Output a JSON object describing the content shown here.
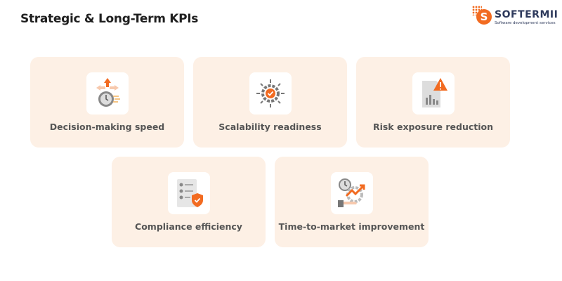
{
  "header": {
    "title": "Strategic & Long-Term KPIs"
  },
  "logo": {
    "name": "SOFTERMII",
    "tagline": "Software development services",
    "letter": "S"
  },
  "colors": {
    "accent": "#f26b21",
    "card_bg": "#fdf0e5",
    "text": "#555555"
  },
  "cards": [
    {
      "label": "Decision-making speed",
      "icon": "stopwatch-arrows-icon"
    },
    {
      "label": "Scalability readiness",
      "icon": "gear-check-icon"
    },
    {
      "label": "Risk exposure reduction",
      "icon": "document-warning-icon"
    },
    {
      "label": "Compliance efficiency",
      "icon": "checklist-shield-icon"
    },
    {
      "label": "Time-to-market improvement",
      "icon": "clock-growth-icon"
    }
  ]
}
